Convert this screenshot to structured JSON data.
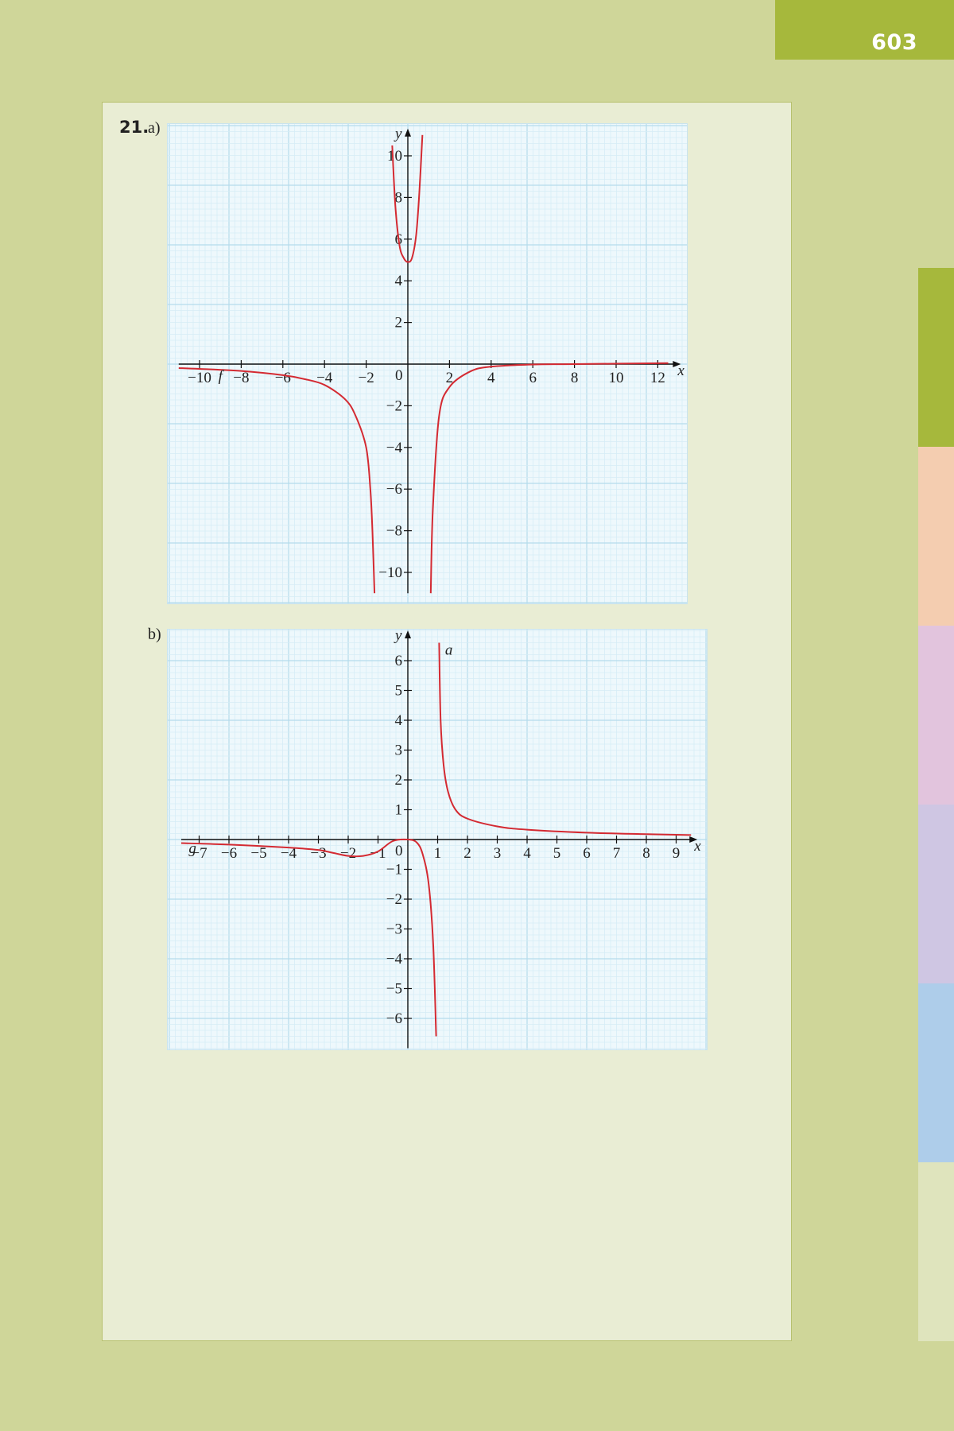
{
  "page": {
    "number": "603"
  },
  "side_tabs": {
    "colors": [
      "#a6b83c",
      "#f4cdb0",
      "#e2c4dd",
      "#cfc6e3",
      "#aecdea",
      "#dfe4bd"
    ]
  },
  "exercise": {
    "number": "21.",
    "part_a_label": "a)",
    "part_b_label": "b)"
  },
  "chart_data": [
    {
      "type": "line",
      "part": "a",
      "xlabel": "x",
      "ylabel": "y",
      "xlim": [
        -11,
        12.8
      ],
      "ylim": [
        -11,
        11
      ],
      "x_ticks": [
        -10,
        -8,
        -6,
        -4,
        -2,
        2,
        4,
        6,
        8,
        10,
        12
      ],
      "y_ticks": [
        -10,
        -8,
        -6,
        -4,
        -2,
        2,
        4,
        6,
        8,
        10
      ],
      "x_tick_labels": [
        "−10",
        "−8",
        "−6",
        "−4",
        "−2",
        "2",
        "4",
        "6",
        "8",
        "10",
        "12"
      ],
      "y_tick_labels": [
        "−10",
        "−8",
        "−6",
        "−4",
        "−2",
        "2",
        "4",
        "6",
        "8",
        "10"
      ],
      "origin_label": "0",
      "curve_color": "#d42a32",
      "series": [
        {
          "name": "f",
          "branches": [
            [
              [
                -11,
                -0.19
              ],
              [
                -10,
                -0.23
              ],
              [
                -8,
                -0.33
              ],
              [
                -6,
                -0.53
              ],
              [
                -5,
                -0.71
              ],
              [
                -4,
                -1.0
              ],
              [
                -3,
                -1.7
              ],
              [
                -2.5,
                -2.5
              ],
              [
                -2,
                -4.0
              ],
              [
                -1.8,
                -6.0
              ],
              [
                -1.7,
                -8.0
              ],
              [
                -1.6,
                -11.0
              ]
            ],
            [
              [
                -0.75,
                10.5
              ],
              [
                -0.6,
                7.6
              ],
              [
                -0.4,
                5.7
              ],
              [
                -0.2,
                5.1
              ],
              [
                0,
                4.9
              ],
              [
                0.2,
                5.1
              ],
              [
                0.4,
                6.2
              ],
              [
                0.55,
                8.2
              ],
              [
                0.7,
                11.0
              ]
            ],
            [
              [
                1.1,
                -11.0
              ],
              [
                1.2,
                -7.0
              ],
              [
                1.5,
                -2.5
              ],
              [
                2,
                -1.1
              ],
              [
                3,
                -0.35
              ],
              [
                4,
                -0.12
              ],
              [
                6,
                -0.02
              ],
              [
                8,
                0.0
              ],
              [
                12.5,
                0.05
              ]
            ]
          ],
          "label_x": -9.1,
          "label_y": -0.8
        }
      ]
    },
    {
      "type": "line",
      "part": "b",
      "xlabel": "x",
      "ylabel": "y",
      "xlim": [
        -7.6,
        9.5
      ],
      "ylim": [
        -7,
        6.8
      ],
      "x_ticks": [
        -7,
        -6,
        -5,
        -4,
        -3,
        -2,
        -1,
        1,
        2,
        3,
        4,
        5,
        6,
        7,
        8,
        9
      ],
      "y_ticks": [
        -6,
        -5,
        -4,
        -3,
        -2,
        -1,
        1,
        2,
        3,
        4,
        5,
        6
      ],
      "x_tick_labels": [
        "−7",
        "−6",
        "−5",
        "−4",
        "−3",
        "−2",
        "−1",
        "1",
        "2",
        "3",
        "4",
        "5",
        "6",
        "7",
        "8",
        "9"
      ],
      "y_tick_labels": [
        "−6",
        "−5",
        "−4",
        "−3",
        "−2",
        "−1",
        "1",
        "2",
        "3",
        "4",
        "5",
        "6"
      ],
      "origin_label": "0",
      "curve_color": "#d42a32",
      "series": [
        {
          "name": "g",
          "branches": [
            [
              [
                -7.6,
                -0.12
              ],
              [
                -6,
                -0.17
              ],
              [
                -4,
                -0.27
              ],
              [
                -3,
                -0.35
              ],
              [
                -2.5,
                -0.45
              ],
              [
                -2,
                -0.55
              ],
              [
                -1.5,
                -0.55
              ],
              [
                -1,
                -0.4
              ],
              [
                -0.5,
                -0.05
              ],
              [
                0,
                0.0
              ],
              [
                0.3,
                -0.1
              ],
              [
                0.5,
                -0.5
              ],
              [
                0.7,
                -1.5
              ],
              [
                0.85,
                -3.5
              ],
              [
                0.95,
                -6.6
              ]
            ]
          ],
          "label_x": -7.35,
          "label_y": -0.45
        },
        {
          "name": "a",
          "branches": [
            [
              [
                1.05,
                6.6
              ],
              [
                1.1,
                4.0
              ],
              [
                1.2,
                2.5
              ],
              [
                1.35,
                1.6
              ],
              [
                1.6,
                1.0
              ],
              [
                2,
                0.7
              ],
              [
                3,
                0.44
              ],
              [
                4,
                0.33
              ],
              [
                6,
                0.23
              ],
              [
                8,
                0.18
              ],
              [
                9.5,
                0.15
              ]
            ]
          ],
          "label_x": 1.25,
          "label_y": 6.2
        }
      ]
    }
  ]
}
